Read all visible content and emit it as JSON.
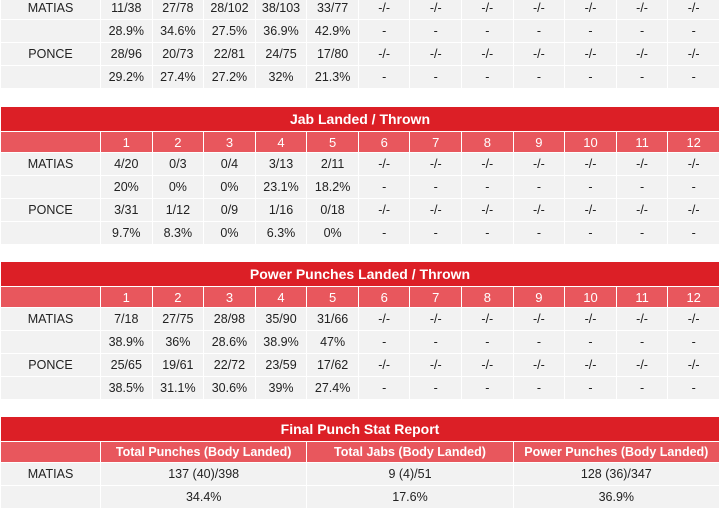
{
  "table1": {
    "rows": [
      {
        "name": "MATIAS",
        "cells": [
          "11/38",
          "27/78",
          "28/102",
          "38/103",
          "33/77",
          "-/-",
          "-/-",
          "-/-",
          "-/-",
          "-/-",
          "-/-",
          "-/-"
        ]
      },
      {
        "name": "",
        "cells": [
          "28.9%",
          "34.6%",
          "27.5%",
          "36.9%",
          "42.9%",
          "-",
          "-",
          "-",
          "-",
          "-",
          "-",
          "-"
        ]
      },
      {
        "name": "PONCE",
        "cells": [
          "28/96",
          "20/73",
          "22/81",
          "24/75",
          "17/80",
          "-/-",
          "-/-",
          "-/-",
          "-/-",
          "-/-",
          "-/-",
          "-/-"
        ]
      },
      {
        "name": "",
        "cells": [
          "29.2%",
          "27.4%",
          "27.2%",
          "32%",
          "21.3%",
          "-",
          "-",
          "-",
          "-",
          "-",
          "-",
          "-"
        ]
      }
    ]
  },
  "table2": {
    "title": "Jab Landed / Thrown",
    "rounds": [
      "1",
      "2",
      "3",
      "4",
      "5",
      "6",
      "7",
      "8",
      "9",
      "10",
      "11",
      "12"
    ],
    "rows": [
      {
        "name": "MATIAS",
        "cells": [
          "4/20",
          "0/3",
          "0/4",
          "3/13",
          "2/11",
          "-/-",
          "-/-",
          "-/-",
          "-/-",
          "-/-",
          "-/-",
          "-/-"
        ]
      },
      {
        "name": "",
        "cells": [
          "20%",
          "0%",
          "0%",
          "23.1%",
          "18.2%",
          "-",
          "-",
          "-",
          "-",
          "-",
          "-",
          "-"
        ]
      },
      {
        "name": "PONCE",
        "cells": [
          "3/31",
          "1/12",
          "0/9",
          "1/16",
          "0/18",
          "-/-",
          "-/-",
          "-/-",
          "-/-",
          "-/-",
          "-/-",
          "-/-"
        ]
      },
      {
        "name": "",
        "cells": [
          "9.7%",
          "8.3%",
          "0%",
          "6.3%",
          "0%",
          "-",
          "-",
          "-",
          "-",
          "-",
          "-",
          "-"
        ]
      }
    ]
  },
  "table3": {
    "title": "Power Punches Landed / Thrown",
    "rounds": [
      "1",
      "2",
      "3",
      "4",
      "5",
      "6",
      "7",
      "8",
      "9",
      "10",
      "11",
      "12"
    ],
    "rows": [
      {
        "name": "MATIAS",
        "cells": [
          "7/18",
          "27/75",
          "28/98",
          "35/90",
          "31/66",
          "-/-",
          "-/-",
          "-/-",
          "-/-",
          "-/-",
          "-/-",
          "-/-"
        ]
      },
      {
        "name": "",
        "cells": [
          "38.9%",
          "36%",
          "28.6%",
          "38.9%",
          "47%",
          "-",
          "-",
          "-",
          "-",
          "-",
          "-",
          "-"
        ]
      },
      {
        "name": "PONCE",
        "cells": [
          "25/65",
          "19/61",
          "22/72",
          "23/59",
          "17/62",
          "-/-",
          "-/-",
          "-/-",
          "-/-",
          "-/-",
          "-/-",
          "-/-"
        ]
      },
      {
        "name": "",
        "cells": [
          "38.5%",
          "31.1%",
          "30.6%",
          "39%",
          "27.4%",
          "-",
          "-",
          "-",
          "-",
          "-",
          "-",
          "-"
        ]
      }
    ]
  },
  "table4": {
    "title": "Final Punch Stat Report",
    "headers": [
      "Total Punches (Body Landed)",
      "Total Jabs (Body Landed)",
      "Power Punches (Body Landed)"
    ],
    "rows": [
      {
        "name": "MATIAS",
        "cells": [
          "137 (40)/398",
          "9 (4)/51",
          "128 (36)/347"
        ]
      },
      {
        "name": "",
        "cells": [
          "34.4%",
          "17.6%",
          "36.9%"
        ]
      }
    ]
  }
}
